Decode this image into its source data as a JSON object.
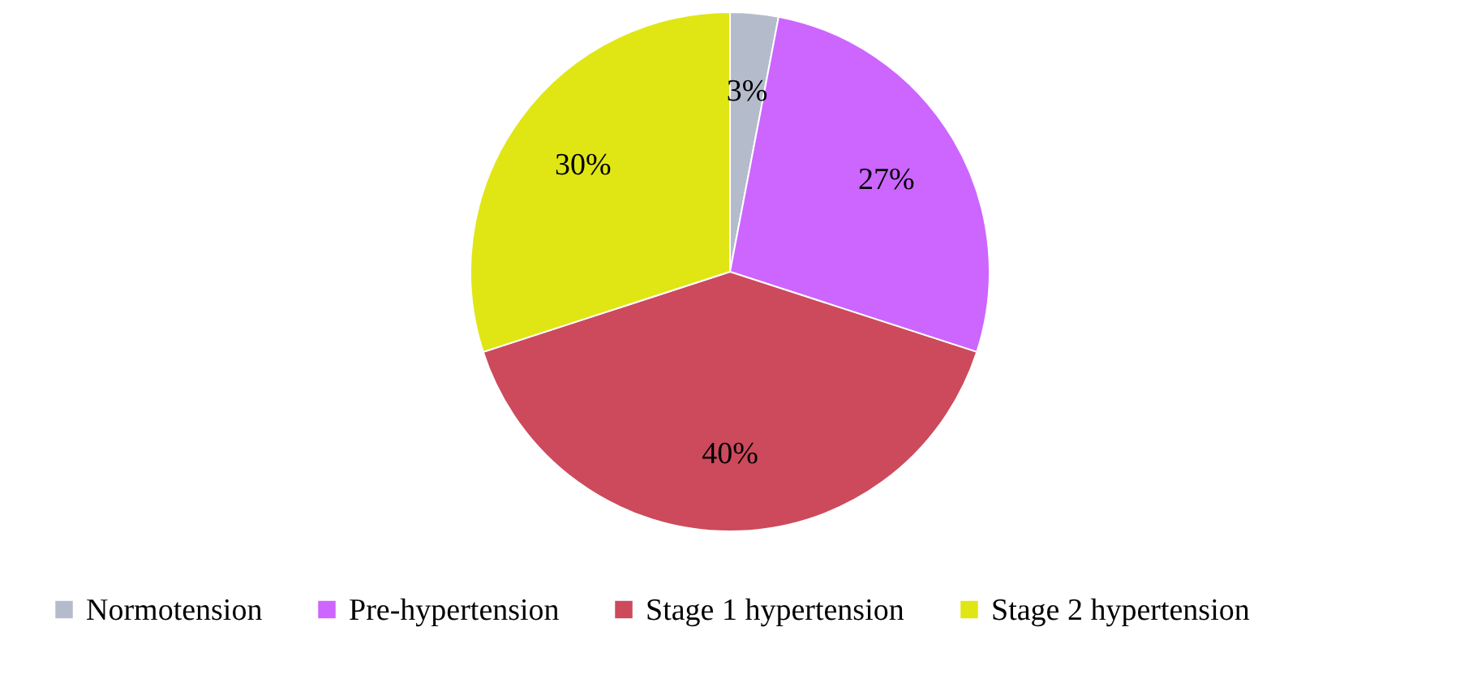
{
  "chart_data": {
    "type": "pie",
    "categories": [
      "Normotension",
      "Pre-hypertension",
      "Stage 1 hypertension",
      "Stage 2 hypertension"
    ],
    "values": [
      3,
      27,
      40,
      30
    ],
    "colors": [
      "#b4bccc",
      "#cc66ff",
      "#cc4a5c",
      "#e0e614"
    ],
    "value_labels": [
      "3%",
      "27%",
      "40%",
      "30%"
    ],
    "legend": "bottom"
  }
}
